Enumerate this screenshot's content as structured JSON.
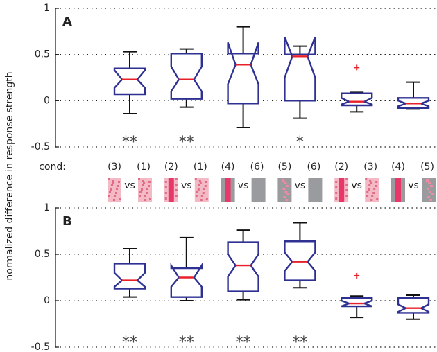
{
  "chart_data": [
    {
      "type": "box",
      "panel_label": "A",
      "ylim": [
        -0.5,
        1
      ],
      "yticks": [
        -0.5,
        0,
        0.5,
        1
      ],
      "grid": true,
      "box_color": "#2e3192",
      "median_color": "#e8202a",
      "boxes": [
        {
          "whisker_low": -0.14,
          "q1": 0.07,
          "notch_low": 0.14,
          "median": 0.23,
          "notch_high": 0.33,
          "q3": 0.35,
          "whisker_high": 0.53,
          "outliers": []
        },
        {
          "whisker_low": -0.07,
          "q1": 0.02,
          "notch_low": 0.1,
          "median": 0.23,
          "notch_high": 0.37,
          "q3": 0.51,
          "whisker_high": 0.56,
          "outliers": []
        },
        {
          "whisker_low": -0.29,
          "q1": -0.03,
          "notch_low": 0.18,
          "median": 0.39,
          "notch_high": 0.63,
          "q3": 0.51,
          "whisker_high": 0.8,
          "outliers": []
        },
        {
          "whisker_low": -0.19,
          "q1": 0.0,
          "notch_low": 0.25,
          "median": 0.48,
          "notch_high": 0.69,
          "q3": 0.5,
          "whisker_high": 0.59,
          "outliers": []
        },
        {
          "whisker_low": -0.12,
          "q1": -0.05,
          "notch_low": -0.04,
          "median": -0.01,
          "notch_high": 0.03,
          "q3": 0.08,
          "whisker_high": 0.09,
          "outliers": [
            0.36
          ]
        },
        {
          "whisker_low": -0.09,
          "q1": -0.08,
          "notch_low": -0.06,
          "median": -0.03,
          "notch_high": 0.0,
          "q3": 0.03,
          "whisker_high": 0.2,
          "outliers": []
        }
      ],
      "significance": [
        "**",
        "**",
        null,
        "*",
        null,
        null
      ]
    },
    {
      "type": "box",
      "panel_label": "B",
      "ylim": [
        -0.5,
        1
      ],
      "yticks": [
        -0.5,
        0,
        0.5,
        1
      ],
      "grid": true,
      "box_color": "#2e3192",
      "median_color": "#e8202a",
      "boxes": [
        {
          "whisker_low": 0.04,
          "q1": 0.13,
          "notch_low": 0.15,
          "median": 0.22,
          "notch_high": 0.3,
          "q3": 0.4,
          "whisker_high": 0.56,
          "outliers": []
        },
        {
          "whisker_low": 0.0,
          "q1": 0.04,
          "notch_low": 0.15,
          "median": 0.25,
          "notch_high": 0.38,
          "q3": 0.35,
          "whisker_high": 0.68,
          "outliers": []
        },
        {
          "whisker_low": 0.01,
          "q1": 0.1,
          "notch_low": 0.26,
          "median": 0.38,
          "notch_high": 0.5,
          "q3": 0.63,
          "whisker_high": 0.76,
          "outliers": []
        },
        {
          "whisker_low": 0.14,
          "q1": 0.22,
          "notch_low": 0.32,
          "median": 0.42,
          "notch_high": 0.52,
          "q3": 0.64,
          "whisker_high": 0.84,
          "outliers": []
        },
        {
          "whisker_low": -0.18,
          "q1": -0.06,
          "notch_low": -0.06,
          "median": -0.03,
          "notch_high": 0.0,
          "q3": 0.03,
          "whisker_high": 0.05,
          "outliers": [
            0.27
          ]
        },
        {
          "whisker_low": -0.2,
          "q1": -0.13,
          "notch_low": -0.12,
          "median": -0.08,
          "notch_high": -0.04,
          "q3": 0.03,
          "whisker_high": 0.06,
          "outliers": []
        }
      ],
      "significance": [
        "**",
        "**",
        "**",
        "**",
        null,
        null
      ]
    }
  ],
  "y_axis_label": "normalized difference in response strength",
  "comparison_row": {
    "label": "cond:",
    "separator": "vs",
    "pairs": [
      [
        "(3)",
        "(1)"
      ],
      [
        "(2)",
        "(1)"
      ],
      [
        "(4)",
        "(6)"
      ],
      [
        "(5)",
        "(6)"
      ],
      [
        "(2)",
        "(3)"
      ],
      [
        "(4)",
        "(5)"
      ]
    ]
  }
}
